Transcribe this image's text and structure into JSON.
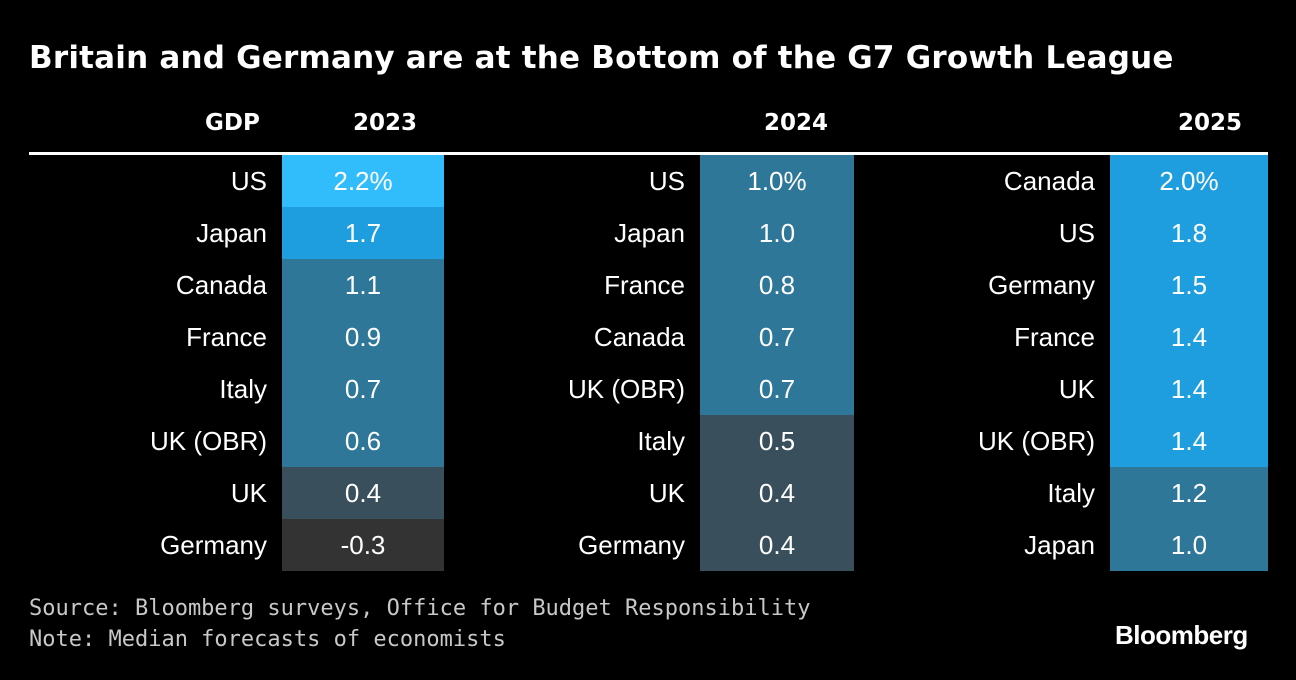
{
  "chart_data": {
    "type": "table",
    "title": "Britain and Germany are at the Bottom of the G7 Growth League",
    "row_header": "GDP",
    "unit_suffix": "%",
    "columns": [
      {
        "year": "2023",
        "countries": [
          "US",
          "Japan",
          "Canada",
          "France",
          "Italy",
          "UK (OBR)",
          "UK",
          "Germany"
        ],
        "values": [
          "2.2%",
          "1.7",
          "1.1",
          "0.9",
          "0.7",
          "0.6",
          "0.4",
          "-0.3"
        ],
        "numeric": [
          2.2,
          1.7,
          1.1,
          0.9,
          0.7,
          0.6,
          0.4,
          -0.3
        ]
      },
      {
        "year": "2024",
        "countries": [
          "US",
          "Japan",
          "France",
          "Canada",
          "UK (OBR)",
          "Italy",
          "UK",
          "Germany"
        ],
        "values": [
          "1.0%",
          "1.0",
          "0.8",
          "0.7",
          "0.7",
          "0.5",
          "0.4",
          "0.4"
        ],
        "numeric": [
          1.0,
          1.0,
          0.8,
          0.7,
          0.7,
          0.5,
          0.4,
          0.4
        ]
      },
      {
        "year": "2025",
        "countries": [
          "Canada",
          "US",
          "Germany",
          "France",
          "UK",
          "UK (OBR)",
          "Italy",
          "Japan"
        ],
        "values": [
          "2.0%",
          "1.8",
          "1.5",
          "1.4",
          "1.4",
          "1.4",
          "1.2",
          "1.0"
        ],
        "numeric": [
          2.0,
          1.8,
          1.5,
          1.4,
          1.4,
          1.4,
          1.2,
          1.0
        ]
      }
    ],
    "color_scale": [
      {
        "min": 2.1,
        "color": "#31bcfc"
      },
      {
        "min": 1.3,
        "color": "#1f9edf"
      },
      {
        "min": 0.6,
        "color": "#2f7799"
      },
      {
        "min": 0.35,
        "color": "#3a4f5c"
      },
      {
        "min": -99,
        "color": "#333333"
      }
    ]
  },
  "footer": {
    "source": "Source: Bloomberg surveys, Office for Budget Responsibility",
    "note": "Note: Median forecasts of economists",
    "logo": "Bloomberg"
  },
  "colors": {
    "background": "#000000",
    "text": "#ffffff",
    "footnote_text": "#c8c8c8"
  }
}
